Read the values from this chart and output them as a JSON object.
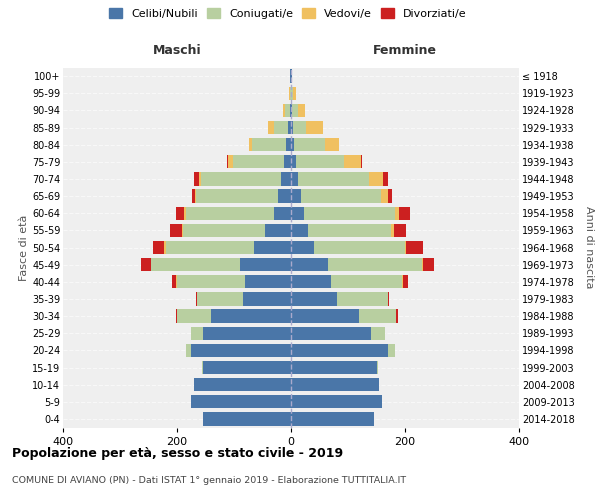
{
  "age_groups": [
    "0-4",
    "5-9",
    "10-14",
    "15-19",
    "20-24",
    "25-29",
    "30-34",
    "35-39",
    "40-44",
    "45-49",
    "50-54",
    "55-59",
    "60-64",
    "65-69",
    "70-74",
    "75-79",
    "80-84",
    "85-89",
    "90-94",
    "95-99",
    "100+"
  ],
  "birth_years": [
    "2014-2018",
    "2009-2013",
    "2004-2008",
    "1999-2003",
    "1994-1998",
    "1989-1993",
    "1984-1988",
    "1979-1983",
    "1974-1978",
    "1969-1973",
    "1964-1968",
    "1959-1963",
    "1954-1958",
    "1949-1953",
    "1944-1948",
    "1939-1943",
    "1934-1938",
    "1929-1933",
    "1924-1928",
    "1919-1923",
    "≤ 1918"
  ],
  "males": {
    "celibi": [
      155,
      175,
      170,
      155,
      175,
      155,
      140,
      85,
      80,
      90,
      65,
      45,
      30,
      22,
      18,
      12,
      8,
      5,
      2,
      0,
      1
    ],
    "coniugati": [
      0,
      0,
      0,
      2,
      10,
      20,
      60,
      80,
      120,
      155,
      155,
      145,
      155,
      145,
      140,
      90,
      60,
      25,
      8,
      2,
      0
    ],
    "vedovi": [
      0,
      0,
      0,
      0,
      0,
      0,
      0,
      0,
      1,
      1,
      2,
      2,
      2,
      2,
      4,
      8,
      5,
      10,
      4,
      2,
      0
    ],
    "divorziati": [
      0,
      0,
      0,
      0,
      0,
      0,
      2,
      2,
      8,
      18,
      20,
      20,
      15,
      5,
      8,
      2,
      0,
      0,
      0,
      0,
      0
    ]
  },
  "females": {
    "nubili": [
      145,
      160,
      155,
      150,
      170,
      140,
      120,
      80,
      70,
      65,
      40,
      30,
      22,
      18,
      12,
      8,
      5,
      4,
      2,
      0,
      1
    ],
    "coniugate": [
      0,
      0,
      0,
      2,
      12,
      25,
      65,
      90,
      125,
      165,
      160,
      145,
      160,
      140,
      125,
      85,
      55,
      22,
      10,
      3,
      0
    ],
    "vedove": [
      0,
      0,
      0,
      0,
      0,
      0,
      0,
      0,
      1,
      2,
      2,
      5,
      8,
      12,
      25,
      30,
      25,
      30,
      12,
      5,
      0
    ],
    "divorziate": [
      0,
      0,
      0,
      0,
      0,
      0,
      2,
      2,
      10,
      18,
      30,
      22,
      18,
      8,
      8,
      2,
      0,
      0,
      0,
      0,
      0
    ]
  },
  "colors": {
    "celibi": "#4a76a8",
    "coniugati": "#b8cfa0",
    "vedovi": "#f0c060",
    "divorziati": "#cc2020"
  },
  "xlim": 400,
  "title": "Popolazione per età, sesso e stato civile - 2019",
  "subtitle": "COMUNE DI AVIANO (PN) - Dati ISTAT 1° gennaio 2019 - Elaborazione TUTTITALIA.IT",
  "xlabel_left": "Maschi",
  "xlabel_right": "Femmine",
  "ylabel": "Fasce di età",
  "ylabel_right": "Anni di nascita",
  "legend_labels": [
    "Celibi/Nubili",
    "Coniugati/e",
    "Vedovi/e",
    "Divorziati/e"
  ]
}
